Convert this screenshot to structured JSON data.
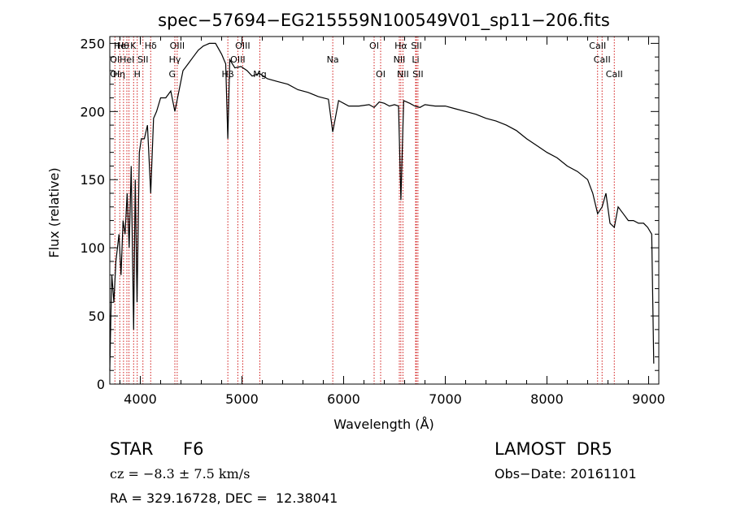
{
  "chart_data": {
    "type": "line",
    "title": "spec−57694−EG215559N100549V01_sp11−206.fits",
    "xlabel": "Wavelength (Å)",
    "ylabel": "Flux (relative)",
    "xlim": [
      3700,
      9100
    ],
    "ylim": [
      0,
      255
    ],
    "xticks": [
      4000,
      5000,
      6000,
      7000,
      8000,
      9000
    ],
    "yticks": [
      0,
      50,
      100,
      150,
      200,
      250
    ],
    "grid": false,
    "line_color": "#000000",
    "marker_color": "#cc0000",
    "x": [
      3700,
      3710,
      3720,
      3740,
      3760,
      3790,
      3810,
      3830,
      3850,
      3870,
      3890,
      3910,
      3934,
      3950,
      3968,
      3990,
      4010,
      4040,
      4070,
      4102,
      4130,
      4160,
      4200,
      4250,
      4300,
      4340,
      4380,
      4420,
      4470,
      4520,
      4570,
      4620,
      4680,
      4740,
      4800,
      4840,
      4861,
      4880,
      4930,
      4990,
      5050,
      5100,
      5170,
      5250,
      5350,
      5450,
      5550,
      5650,
      5750,
      5850,
      5893,
      5950,
      6050,
      6150,
      6250,
      6300,
      6350,
      6400,
      6450,
      6500,
      6540,
      6563,
      6590,
      6650,
      6700,
      6750,
      6800,
      6900,
      7000,
      7100,
      7200,
      7300,
      7400,
      7500,
      7600,
      7700,
      7800,
      7900,
      8000,
      8100,
      8200,
      8300,
      8400,
      8450,
      8498,
      8542,
      8580,
      8620,
      8662,
      8700,
      8750,
      8800,
      8850,
      8900,
      8950,
      8990,
      9030,
      9050
    ],
    "y": [
      10,
      50,
      80,
      60,
      90,
      110,
      80,
      120,
      110,
      140,
      100,
      160,
      40,
      150,
      60,
      170,
      180,
      180,
      190,
      140,
      195,
      200,
      210,
      210,
      215,
      200,
      215,
      230,
      235,
      240,
      245,
      248,
      250,
      250,
      242,
      235,
      180,
      238,
      232,
      233,
      230,
      226,
      228,
      224,
      222,
      220,
      216,
      214,
      211,
      209,
      185,
      208,
      204,
      204,
      205,
      203,
      207,
      206,
      204,
      205,
      204,
      135,
      208,
      206,
      204,
      203,
      205,
      204,
      204,
      202,
      200,
      198,
      195,
      193,
      190,
      186,
      180,
      175,
      170,
      166,
      160,
      156,
      150,
      140,
      125,
      130,
      140,
      118,
      115,
      130,
      125,
      120,
      120,
      118,
      118,
      115,
      110,
      15
    ]
  },
  "annotations": {
    "labels": [
      "Hθ",
      "OI",
      "OI",
      "He",
      "Hη",
      "K",
      "HeI",
      "H",
      "Hδ",
      "SII",
      "OIII",
      "Hγ",
      "G",
      "Hβ",
      "OIII",
      "OIII",
      "Mg",
      "Na",
      "OI",
      "OI",
      "Hα",
      "NII",
      "NII",
      "SII",
      "Li",
      "SII",
      "CaII",
      "CaII",
      "CaII"
    ]
  },
  "footer": {
    "object_type": "STAR",
    "subclass": "F6",
    "survey": "LAMOST  DR5",
    "redshift": "cz = −8.3 ± 7.5 km/s",
    "obs_date": "Obs−Date: 20161101",
    "coords": "RA = 329.16728, DEC =  12.38041"
  }
}
